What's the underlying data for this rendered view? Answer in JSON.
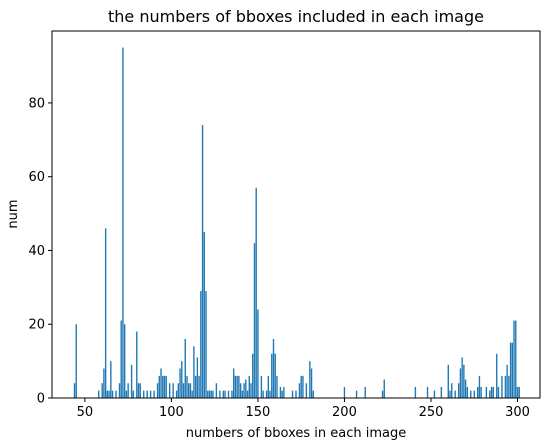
{
  "chart_data": {
    "type": "bar",
    "title": "the numbers of bboxes included in each image",
    "xlabel": "numbers of bboxes in each image",
    "ylabel": "num",
    "xlim": [
      31,
      313
    ],
    "ylim": [
      0,
      99.5
    ],
    "xticks": [
      50,
      100,
      150,
      200,
      250,
      300
    ],
    "yticks": [
      0,
      20,
      40,
      60,
      80
    ],
    "grid": false,
    "color": "#1f77b4",
    "bar_width": 0.8,
    "points": [
      [
        44,
        4
      ],
      [
        45,
        20
      ],
      [
        58,
        2
      ],
      [
        60,
        4
      ],
      [
        61,
        8
      ],
      [
        62,
        46
      ],
      [
        63,
        2
      ],
      [
        64,
        2
      ],
      [
        65,
        10
      ],
      [
        66,
        2
      ],
      [
        68,
        2
      ],
      [
        70,
        4
      ],
      [
        71,
        21
      ],
      [
        72,
        95
      ],
      [
        73,
        20
      ],
      [
        74,
        2
      ],
      [
        75,
        4
      ],
      [
        77,
        9
      ],
      [
        78,
        2
      ],
      [
        80,
        18
      ],
      [
        81,
        4
      ],
      [
        82,
        4
      ],
      [
        84,
        2
      ],
      [
        86,
        2
      ],
      [
        88,
        2
      ],
      [
        90,
        2
      ],
      [
        92,
        4
      ],
      [
        93,
        6
      ],
      [
        94,
        8
      ],
      [
        95,
        6
      ],
      [
        96,
        6
      ],
      [
        97,
        6
      ],
      [
        99,
        4
      ],
      [
        101,
        4
      ],
      [
        103,
        2
      ],
      [
        104,
        4
      ],
      [
        105,
        8
      ],
      [
        106,
        10
      ],
      [
        107,
        4
      ],
      [
        108,
        16
      ],
      [
        109,
        6
      ],
      [
        110,
        4
      ],
      [
        111,
        4
      ],
      [
        112,
        2
      ],
      [
        113,
        14
      ],
      [
        114,
        6
      ],
      [
        115,
        11
      ],
      [
        116,
        6
      ],
      [
        117,
        29
      ],
      [
        118,
        74
      ],
      [
        119,
        45
      ],
      [
        120,
        29
      ],
      [
        121,
        2
      ],
      [
        122,
        2
      ],
      [
        123,
        2
      ],
      [
        124,
        2
      ],
      [
        126,
        4
      ],
      [
        128,
        2
      ],
      [
        130,
        2
      ],
      [
        131,
        2
      ],
      [
        133,
        2
      ],
      [
        135,
        2
      ],
      [
        136,
        8
      ],
      [
        137,
        6
      ],
      [
        138,
        6
      ],
      [
        139,
        6
      ],
      [
        140,
        4
      ],
      [
        141,
        2
      ],
      [
        142,
        4
      ],
      [
        143,
        5
      ],
      [
        144,
        2
      ],
      [
        145,
        6
      ],
      [
        146,
        4
      ],
      [
        147,
        12
      ],
      [
        148,
        42
      ],
      [
        149,
        57
      ],
      [
        150,
        24
      ],
      [
        152,
        6
      ],
      [
        153,
        2
      ],
      [
        155,
        2
      ],
      [
        156,
        6
      ],
      [
        157,
        2
      ],
      [
        158,
        12
      ],
      [
        159,
        16
      ],
      [
        160,
        12
      ],
      [
        161,
        6
      ],
      [
        163,
        3
      ],
      [
        164,
        2
      ],
      [
        165,
        3
      ],
      [
        170,
        2
      ],
      [
        172,
        2
      ],
      [
        174,
        4
      ],
      [
        175,
        6
      ],
      [
        176,
        6
      ],
      [
        178,
        4
      ],
      [
        180,
        10
      ],
      [
        181,
        8
      ],
      [
        182,
        2
      ],
      [
        200,
        3
      ],
      [
        207,
        2
      ],
      [
        212,
        3
      ],
      [
        222,
        2
      ],
      [
        223,
        5
      ],
      [
        241,
        3
      ],
      [
        248,
        3
      ],
      [
        252,
        2
      ],
      [
        256,
        3
      ],
      [
        260,
        9
      ],
      [
        261,
        2
      ],
      [
        262,
        4
      ],
      [
        264,
        2
      ],
      [
        266,
        4
      ],
      [
        267,
        8
      ],
      [
        268,
        11
      ],
      [
        269,
        9
      ],
      [
        270,
        5
      ],
      [
        271,
        3
      ],
      [
        273,
        2
      ],
      [
        275,
        2
      ],
      [
        277,
        3
      ],
      [
        278,
        6
      ],
      [
        279,
        3
      ],
      [
        282,
        3
      ],
      [
        284,
        2
      ],
      [
        285,
        3
      ],
      [
        286,
        3
      ],
      [
        288,
        12
      ],
      [
        289,
        3
      ],
      [
        291,
        6
      ],
      [
        293,
        6
      ],
      [
        294,
        9
      ],
      [
        295,
        6
      ],
      [
        296,
        15
      ],
      [
        297,
        15
      ],
      [
        298,
        21
      ],
      [
        299,
        21
      ],
      [
        300,
        3
      ],
      [
        301,
        3
      ]
    ]
  }
}
